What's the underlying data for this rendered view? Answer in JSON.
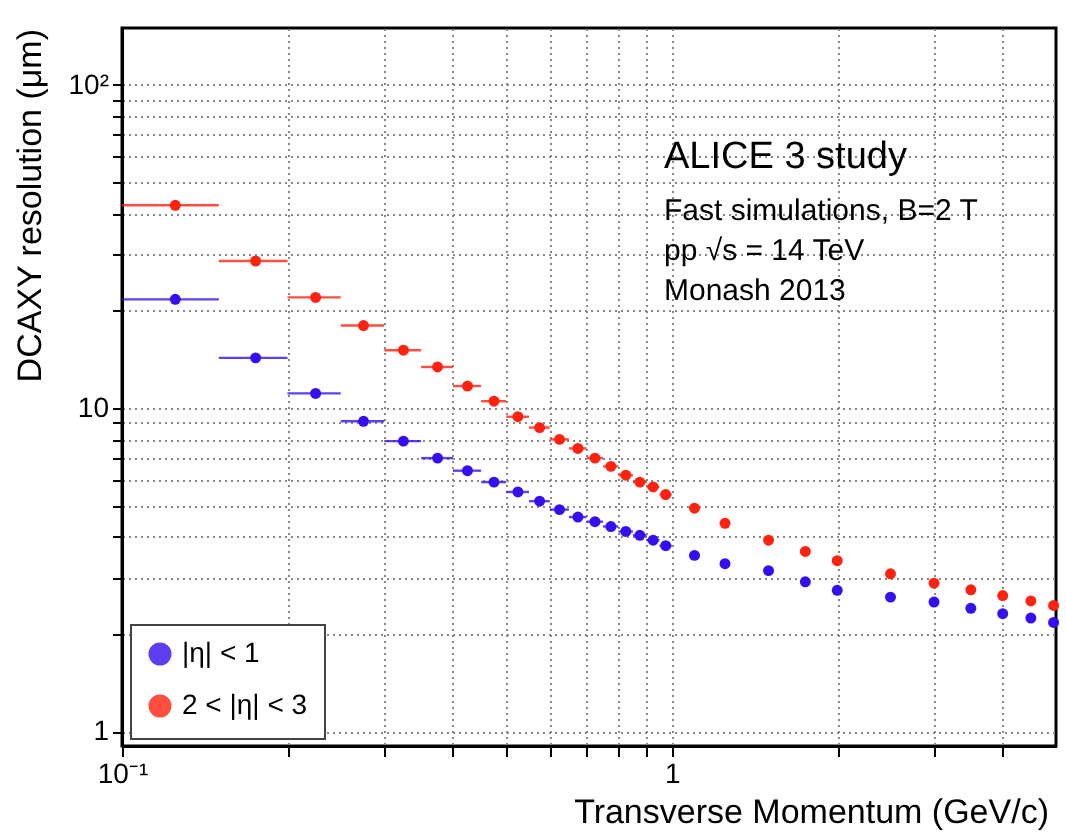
{
  "chart_data": {
    "type": "scatter",
    "xlabel": "Transverse Momentum (GeV/c)",
    "ylabel": "DCAXY resolution (μm)",
    "annotations": [
      "ALICE 3 study",
      "Fast simulations, B=2 T",
      "pp √s = 14 TeV",
      "Monash 2013"
    ],
    "x": [
      0.125,
      0.175,
      0.225,
      0.275,
      0.325,
      0.375,
      0.425,
      0.475,
      0.525,
      0.575,
      0.625,
      0.675,
      0.725,
      0.775,
      0.825,
      0.875,
      0.925,
      0.975,
      1.1,
      1.25,
      1.5,
      1.75,
      2,
      2.5,
      3,
      3.5,
      4,
      4.5,
      4.95
    ],
    "series": [
      {
        "name": "|η| < 1",
        "color": "#3311ee",
        "values": [
          21.7,
          14.3,
          11.1,
          9.1,
          7.9,
          7.0,
          6.4,
          5.9,
          5.5,
          5.15,
          4.85,
          4.6,
          4.45,
          4.3,
          4.15,
          4.04,
          3.9,
          3.75,
          3.5,
          3.3,
          3.14,
          2.9,
          2.73,
          2.6,
          2.51,
          2.4,
          2.31,
          2.24,
          2.17
        ],
        "xerrors": [
          0.025,
          0.025,
          0.025,
          0.025,
          0.025,
          0.025,
          0.025,
          0.025,
          0.025,
          0.025,
          0.025,
          0.025,
          0.025,
          0.025,
          0.025,
          0.025,
          0.025,
          0.025,
          0.025,
          0.025,
          0.025,
          0.025,
          0.025,
          0.025,
          0.025,
          0.025,
          0.025,
          0.025,
          0.025
        ]
      },
      {
        "name": "2 < |η| < 3",
        "color": "#ff2211",
        "values": [
          42.4,
          28.5,
          22.0,
          18.0,
          15.1,
          13.4,
          11.7,
          10.5,
          9.4,
          8.7,
          8.0,
          7.5,
          7.0,
          6.6,
          6.2,
          5.9,
          5.7,
          5.4,
          4.9,
          4.4,
          3.9,
          3.6,
          3.37,
          3.07,
          2.87,
          2.74,
          2.63,
          2.53,
          2.45
        ],
        "xerrors": [
          0.025,
          0.025,
          0.025,
          0.025,
          0.025,
          0.025,
          0.025,
          0.025,
          0.025,
          0.025,
          0.025,
          0.025,
          0.025,
          0.025,
          0.025,
          0.025,
          0.025,
          0.025,
          0.025,
          0.025,
          0.025,
          0.025,
          0.025,
          0.025,
          0.025,
          0.025,
          0.025,
          0.025,
          0.025
        ]
      }
    ],
    "log": "xy",
    "xlim": [
      0.1,
      5
    ],
    "ylim": [
      0.9,
      150
    ],
    "xticks": [
      {
        "value": 0.1,
        "label": "10⁻¹"
      },
      {
        "value": 0.2,
        "label": null
      },
      {
        "value": 0.3,
        "label": null
      },
      {
        "value": 0.4,
        "label": null
      },
      {
        "value": 0.5,
        "label": null
      },
      {
        "value": 0.6,
        "label": null
      },
      {
        "value": 0.7,
        "label": null
      },
      {
        "value": 0.8,
        "label": null
      },
      {
        "value": 0.9,
        "label": null
      },
      1,
      {
        "value": 2,
        "label": null
      },
      {
        "value": 3,
        "label": null
      },
      {
        "value": 4,
        "label": null
      }
    ],
    "yticks": [
      1,
      {
        "value": 2,
        "label": null
      },
      {
        "value": 3,
        "label": null
      },
      {
        "value": 4,
        "label": null
      },
      {
        "value": 5,
        "label": null
      },
      {
        "value": 6,
        "label": null
      },
      {
        "value": 7,
        "label": null
      },
      {
        "value": 8,
        "label": null
      },
      {
        "value": 9,
        "label": null
      },
      10,
      {
        "value": 20,
        "label": null
      },
      {
        "value": 30,
        "label": null
      },
      {
        "value": 40,
        "label": null
      },
      {
        "value": 50,
        "label": null
      },
      {
        "value": 60,
        "label": null
      },
      {
        "value": 70,
        "label": null
      },
      {
        "value": 80,
        "label": null
      },
      {
        "value": 90,
        "label": null
      },
      {
        "value": 100,
        "label": "10²"
      }
    ],
    "grid": true,
    "legend": "bottom left",
    "marker": "circle"
  }
}
